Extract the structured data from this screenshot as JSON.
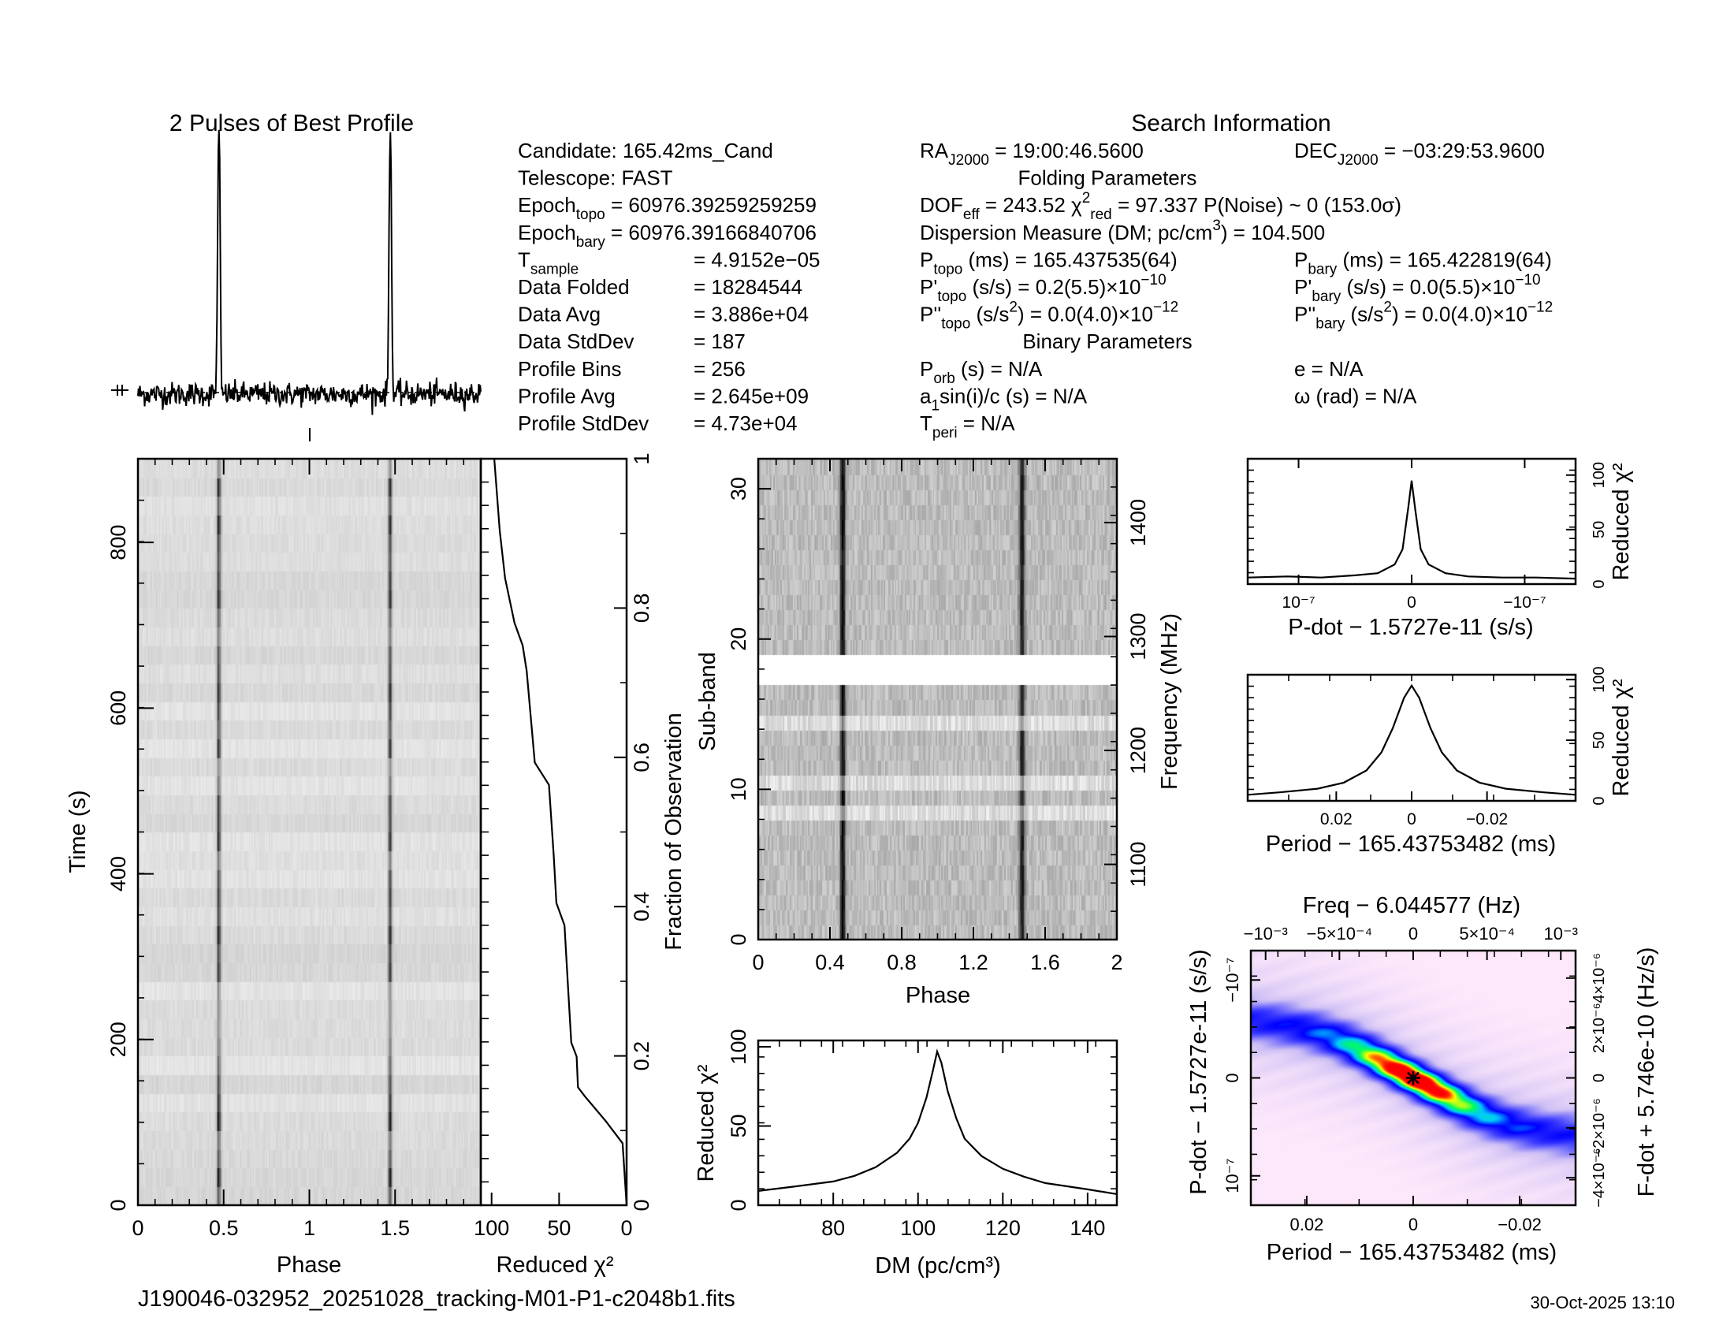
{
  "header": {
    "profile_title": "2 Pulses of Best Profile",
    "search_title": "Search Information",
    "footer_file": "J190046-032952_20251028_tracking-M01-P1-c2048b1.fits",
    "footer_date": "30-Oct-2025 13:10"
  },
  "info": {
    "cells": [
      {
        "row": 0,
        "col": "a",
        "parts": [
          {
            "t": "Candidate:  165.42ms_Cand"
          }
        ]
      },
      {
        "row": 0,
        "col": "b",
        "parts": [
          {
            "t": "RA"
          },
          {
            "t": "J2000",
            "s": "sub"
          },
          {
            "t": " = 19:00:46.5600"
          }
        ]
      },
      {
        "row": 0,
        "col": "c",
        "parts": [
          {
            "t": "DEC"
          },
          {
            "t": "J2000",
            "s": "sub"
          },
          {
            "t": " = −03:29:53.9600"
          }
        ]
      },
      {
        "row": 1,
        "col": "a",
        "parts": [
          {
            "t": "Telescope:  FAST"
          }
        ]
      },
      {
        "row": 1,
        "col": "mid",
        "parts": [
          {
            "t": "Folding Parameters"
          }
        ]
      },
      {
        "row": 2,
        "col": "a",
        "parts": [
          {
            "t": "Epoch"
          },
          {
            "t": "topo",
            "s": "sub"
          },
          {
            "t": " = 60976.39259259259"
          }
        ]
      },
      {
        "row": 2,
        "col": "b",
        "parts": [
          {
            "t": "DOF"
          },
          {
            "t": "eff",
            "s": "sub"
          },
          {
            "t": " = 243.52  χ"
          },
          {
            "t": "2",
            "s": "sup"
          },
          {
            "t": "red",
            "s": "sub"
          },
          {
            "t": " = 97.337  P(Noise) ~ 0    (153.0σ)"
          }
        ]
      },
      {
        "row": 3,
        "col": "a",
        "parts": [
          {
            "t": "Epoch"
          },
          {
            "t": "bary",
            "s": "sub"
          },
          {
            "t": " = 60976.39166840706"
          }
        ]
      },
      {
        "row": 3,
        "col": "b",
        "parts": [
          {
            "t": "Dispersion Measure (DM; pc/cm"
          },
          {
            "t": "3",
            "s": "sup"
          },
          {
            "t": ") = 104.500"
          }
        ]
      },
      {
        "row": 4,
        "col": "a",
        "parts": [
          {
            "t": "T"
          },
          {
            "t": "sample",
            "s": "sub"
          }
        ]
      },
      {
        "row": 4,
        "col": "eq",
        "parts": [
          {
            "t": "=  4.9152e−05"
          }
        ]
      },
      {
        "row": 4,
        "col": "b",
        "parts": [
          {
            "t": "P"
          },
          {
            "t": "topo",
            "s": "sub"
          },
          {
            "t": " (ms) =  165.437535(64)"
          }
        ]
      },
      {
        "row": 4,
        "col": "c",
        "parts": [
          {
            "t": "P"
          },
          {
            "t": "bary",
            "s": "sub"
          },
          {
            "t": " (ms) =  165.422819(64)"
          }
        ]
      },
      {
        "row": 5,
        "col": "a",
        "parts": [
          {
            "t": "Data Folded"
          }
        ]
      },
      {
        "row": 5,
        "col": "eq",
        "parts": [
          {
            "t": "=  18284544"
          }
        ]
      },
      {
        "row": 5,
        "col": "b",
        "parts": [
          {
            "t": "P'"
          },
          {
            "t": "topo",
            "s": "sub"
          },
          {
            "t": " (s/s) =  0.2(5.5)×10"
          },
          {
            "t": "−10",
            "s": "sup"
          }
        ]
      },
      {
        "row": 5,
        "col": "c",
        "parts": [
          {
            "t": "P'"
          },
          {
            "t": "bary",
            "s": "sub"
          },
          {
            "t": " (s/s) = 0.0(5.5)×10"
          },
          {
            "t": "−10",
            "s": "sup"
          }
        ]
      },
      {
        "row": 6,
        "col": "a",
        "parts": [
          {
            "t": "Data Avg"
          }
        ]
      },
      {
        "row": 6,
        "col": "eq",
        "parts": [
          {
            "t": "=  3.886e+04"
          }
        ]
      },
      {
        "row": 6,
        "col": "b",
        "parts": [
          {
            "t": "P''"
          },
          {
            "t": "topo",
            "s": "sub"
          },
          {
            "t": " (s/s"
          },
          {
            "t": "2",
            "s": "sup"
          },
          {
            "t": ") = 0.0(4.0)×10"
          },
          {
            "t": "−12",
            "s": "sup"
          }
        ]
      },
      {
        "row": 6,
        "col": "c",
        "parts": [
          {
            "t": "P''"
          },
          {
            "t": "bary",
            "s": "sub"
          },
          {
            "t": " (s/s"
          },
          {
            "t": "2",
            "s": "sup"
          },
          {
            "t": ") = 0.0(4.0)×10"
          },
          {
            "t": "−12",
            "s": "sup"
          }
        ]
      },
      {
        "row": 7,
        "col": "a",
        "parts": [
          {
            "t": "Data StdDev"
          }
        ]
      },
      {
        "row": 7,
        "col": "eq",
        "parts": [
          {
            "t": "=  187"
          }
        ]
      },
      {
        "row": 7,
        "col": "mid",
        "parts": [
          {
            "t": "Binary Parameters"
          }
        ]
      },
      {
        "row": 8,
        "col": "a",
        "parts": [
          {
            "t": "Profile Bins"
          }
        ]
      },
      {
        "row": 8,
        "col": "eq",
        "parts": [
          {
            "t": "=  256"
          }
        ]
      },
      {
        "row": 8,
        "col": "b",
        "parts": [
          {
            "t": "P"
          },
          {
            "t": "orb",
            "s": "sub"
          },
          {
            "t": " (s) = N/A"
          }
        ]
      },
      {
        "row": 8,
        "col": "c",
        "parts": [
          {
            "t": "e = N/A"
          }
        ]
      },
      {
        "row": 9,
        "col": "a",
        "parts": [
          {
            "t": "Profile Avg"
          }
        ]
      },
      {
        "row": 9,
        "col": "eq",
        "parts": [
          {
            "t": "=  2.645e+09"
          }
        ]
      },
      {
        "row": 9,
        "col": "b",
        "parts": [
          {
            "t": "a"
          },
          {
            "t": "1",
            "s": "sub"
          },
          {
            "t": "sin(i)/c (s) = N/A"
          }
        ]
      },
      {
        "row": 9,
        "col": "c",
        "parts": [
          {
            "t": "ω (rad) = N/A"
          }
        ]
      },
      {
        "row": 10,
        "col": "a",
        "parts": [
          {
            "t": "Profile StdDev"
          }
        ]
      },
      {
        "row": 10,
        "col": "eq",
        "parts": [
          {
            "t": "=  4.73e+04"
          }
        ]
      },
      {
        "row": 10,
        "col": "b",
        "parts": [
          {
            "t": "T"
          },
          {
            "t": "peri",
            "s": "sub"
          },
          {
            "t": " = N/A"
          }
        ]
      }
    ]
  },
  "chart_data": {
    "profile": {
      "type": "line",
      "title": "2 Pulses of Best Profile",
      "xlim": [
        0,
        2
      ],
      "components": [
        {
          "phase": 0.47,
          "height": 1.0,
          "width": 0.006
        },
        {
          "phase": 0.478,
          "height": 0.45,
          "width": 0.004
        }
      ],
      "noise_rms": 0.025
    },
    "time_phase": {
      "type": "heatmap",
      "xlabel": "Phase",
      "ylabel": "Time  (s)",
      "xlim": [
        0,
        2
      ],
      "ylim": [
        0,
        901
      ],
      "pulse_phase": 0.47,
      "xticks": [
        {
          "v": 0,
          "label": "0"
        },
        {
          "v": 0.5,
          "label": "0.5"
        },
        {
          "v": 1,
          "label": "1"
        },
        {
          "v": 1.5,
          "label": "1.5"
        }
      ],
      "yticks": [
        {
          "v": 0,
          "label": "0"
        },
        {
          "v": 200,
          "label": "200"
        },
        {
          "v": 400,
          "label": "400"
        },
        {
          "v": 600,
          "label": "600"
        },
        {
          "v": 800,
          "label": "800"
        }
      ]
    },
    "chi_vs_time": {
      "type": "line",
      "xlabel": "Reduced χ²",
      "ylabel": "Fraction of Observation",
      "xlim": [
        108,
        0
      ],
      "ylim": [
        0,
        1
      ],
      "x": [
        0,
        3,
        15.6,
        31,
        36,
        37,
        41,
        43,
        46,
        52,
        54,
        57.5,
        68,
        74,
        77,
        83,
        90,
        94,
        98
      ],
      "y": [
        0,
        0.083,
        0.113,
        0.146,
        0.158,
        0.199,
        0.218,
        0.281,
        0.375,
        0.405,
        0.469,
        0.563,
        0.593,
        0.716,
        0.75,
        0.78,
        0.84,
        0.904,
        1.0
      ],
      "xticks": [
        {
          "v": 100,
          "label": "100"
        },
        {
          "v": 50,
          "label": "50"
        },
        {
          "v": 0,
          "label": "0"
        }
      ],
      "yticks": [
        {
          "v": 0,
          "label": "0"
        },
        {
          "v": 0.2,
          "label": "0.2"
        },
        {
          "v": 0.4,
          "label": "0.4"
        },
        {
          "v": 0.6,
          "label": "0.6"
        },
        {
          "v": 0.8,
          "label": "0.8"
        },
        {
          "v": 1,
          "label": "1"
        }
      ]
    },
    "subband_phase": {
      "type": "heatmap",
      "xlabel": "Phase",
      "ylabel": "Sub-band",
      "y2label": "Frequency (MHz)",
      "xlim": [
        0,
        2
      ],
      "ylim": [
        0,
        32
      ],
      "y2lim": [
        1034,
        1456
      ],
      "pulse_phase": 0.47,
      "masked_subbands": [
        17,
        18
      ],
      "faint_subbands": [
        8,
        10,
        14,
        18
      ],
      "xticks": [
        {
          "v": 0,
          "label": "0"
        },
        {
          "v": 0.4,
          "label": "0.4"
        },
        {
          "v": 0.8,
          "label": "0.8"
        },
        {
          "v": 1.2,
          "label": "1.2"
        },
        {
          "v": 1.6,
          "label": "1.6"
        },
        {
          "v": 2,
          "label": "2"
        }
      ],
      "yticks": [
        {
          "v": 0,
          "label": "0"
        },
        {
          "v": 10,
          "label": "10"
        },
        {
          "v": 20,
          "label": "20"
        },
        {
          "v": 30,
          "label": "30"
        }
      ],
      "y2ticks": [
        {
          "v": 1100,
          "label": "1100"
        },
        {
          "v": 1200,
          "label": "1200"
        },
        {
          "v": 1300,
          "label": "1300"
        },
        {
          "v": 1400,
          "label": "1400"
        }
      ]
    },
    "dm_curve": {
      "type": "line",
      "xlabel": "DM (pc/cm³)",
      "ylabel": "Reduced χ²",
      "xlim": [
        62.3,
        146.9
      ],
      "ylim": [
        0,
        104
      ],
      "x": [
        62.3,
        70,
        80,
        85,
        90,
        95,
        98,
        100,
        102,
        103.5,
        104.5,
        105.5,
        107,
        109,
        111,
        115,
        120,
        125,
        130,
        135,
        140,
        146.9
      ],
      "y": [
        9,
        11.5,
        15,
        18.5,
        24,
        33,
        42,
        52,
        68,
        85,
        97,
        90,
        72,
        55,
        42,
        31,
        23,
        18,
        14,
        12,
        10,
        7
      ],
      "xticks": [
        {
          "v": 80,
          "label": "80"
        },
        {
          "v": 100,
          "label": "100"
        },
        {
          "v": 120,
          "label": "120"
        },
        {
          "v": 140,
          "label": "140"
        }
      ],
      "yticks": [
        {
          "v": 0,
          "label": "0"
        },
        {
          "v": 50,
          "label": "50"
        },
        {
          "v": 100,
          "label": "100"
        }
      ]
    },
    "pdot_curve": {
      "type": "line",
      "xlabel": "P-dot − 1.5727e-11 (s/s)",
      "ylabel": "Reduced χ²",
      "xlim": [
        1.45e-07,
        -1.45e-07
      ],
      "ylim": [
        0,
        115
      ],
      "x": [
        1.45e-07,
        1.1e-07,
        8e-08,
        5e-08,
        3e-08,
        1.5e-08,
        8e-09,
        3e-09,
        0,
        -3e-09,
        -8e-09,
        -1.5e-08,
        -3e-08,
        -5e-08,
        -8e-08,
        -1.1e-07,
        -1.45e-07
      ],
      "y": [
        6,
        7,
        6,
        8,
        10,
        18,
        32,
        70,
        95,
        70,
        32,
        18,
        10,
        7,
        6,
        6,
        5
      ],
      "xticks": [
        {
          "v": 1e-07,
          "label": "10⁻⁷"
        },
        {
          "v": 0,
          "label": "0"
        },
        {
          "v": -1e-07,
          "label": "−10⁻⁷"
        }
      ],
      "yticks": [
        {
          "v": 0,
          "label": "0"
        },
        {
          "v": 50,
          "label": "50"
        },
        {
          "v": 100,
          "label": "100"
        }
      ]
    },
    "period_curve": {
      "type": "line",
      "xlabel": "Period − 165.43753482 (ms)",
      "ylabel": "Reduced χ²",
      "xlim": [
        0.0435,
        -0.0435
      ],
      "ylim": [
        0,
        104
      ],
      "x": [
        0.0435,
        0.035,
        0.025,
        0.018,
        0.012,
        0.008,
        0.005,
        0.002,
        0,
        -0.002,
        -0.005,
        -0.008,
        -0.012,
        -0.018,
        -0.025,
        -0.035,
        -0.0435
      ],
      "y": [
        5,
        7,
        10,
        15,
        25,
        40,
        60,
        85,
        95,
        85,
        60,
        40,
        25,
        15,
        10,
        7,
        5
      ],
      "xticks": [
        {
          "v": 0.02,
          "label": "0.02"
        },
        {
          "v": 0,
          "label": "0"
        },
        {
          "v": -0.02,
          "label": "−0.02"
        }
      ],
      "yticks": [
        {
          "v": 0,
          "label": "0"
        },
        {
          "v": 50,
          "label": "50"
        },
        {
          "v": 100,
          "label": "100"
        }
      ]
    },
    "p_pdot_plane": {
      "type": "heatmap",
      "title": "Freq − 6.044577 (Hz)",
      "xlabel": "Period − 165.43753482 (ms)",
      "ylabel": "P-dot − 1.5727e-11 (s/s)",
      "y2label": "F-dot + 5.746e-10 (Hz/s)",
      "xlim": [
        0.0305,
        -0.0305
      ],
      "ylim": [
        1.3e-07,
        -1.3e-07
      ],
      "best": [
        0,
        0
      ],
      "xticks": [
        {
          "v": 0.02,
          "label": "0.02"
        },
        {
          "v": 0,
          "label": "0"
        },
        {
          "v": -0.02,
          "label": "−0.02"
        }
      ],
      "yticks": [
        {
          "v": 1e-07,
          "label": "10⁻⁷"
        },
        {
          "v": 0,
          "label": "0"
        },
        {
          "v": -1e-07,
          "label": "−10⁻⁷"
        }
      ],
      "x2ticks": [
        {
          "v": -0.001,
          "label": "−10⁻³"
        },
        {
          "v": -0.0005,
          "label": "−5×10⁻⁴"
        },
        {
          "v": 0,
          "label": "0"
        },
        {
          "v": 0.0005,
          "label": "5×10⁻⁴"
        },
        {
          "v": 0.001,
          "label": "10⁻³"
        }
      ],
      "x2lim": [
        -0.0011,
        0.0011
      ],
      "y2ticks": [
        {
          "v": -4e-06,
          "label": "−4×10⁻⁶"
        },
        {
          "v": -2e-06,
          "label": "−2×10⁻⁶"
        },
        {
          "v": 0,
          "label": "0"
        },
        {
          "v": 2e-06,
          "label": "2×10⁻⁶"
        },
        {
          "v": 4e-06,
          "label": "4×10⁻⁶"
        }
      ],
      "y2lim": [
        -5.1e-06,
        5.1e-06
      ]
    }
  }
}
